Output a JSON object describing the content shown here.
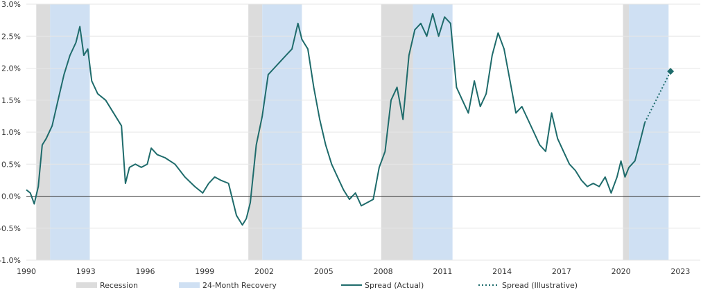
{
  "chart_data": {
    "type": "line",
    "title": "",
    "xlabel": "",
    "ylabel": "",
    "xlim": [
      1990,
      2024
    ],
    "ylim": [
      -1.0,
      3.0
    ],
    "y_ticks": [
      -1.0,
      -0.5,
      0.0,
      0.5,
      1.0,
      1.5,
      2.0,
      2.5,
      3.0
    ],
    "y_tick_labels": [
      "-1.0%",
      "-0.5%",
      "0.0%",
      "0.5%",
      "1.0%",
      "1.5%",
      "2.0%",
      "2.5%",
      "3.0%"
    ],
    "x_ticks": [
      1990,
      1993,
      1996,
      1999,
      2002,
      2005,
      2008,
      2011,
      2014,
      2017,
      2020,
      2023
    ],
    "x_tick_labels": [
      "1990",
      "1993",
      "1996",
      "1999",
      "2002",
      "2005",
      "2008",
      "2011",
      "2014",
      "2017",
      "2020",
      "2023"
    ],
    "grid": true,
    "legend_position": "bottom",
    "colors": {
      "recession": "#dcdcdc",
      "recovery": "#cfe0f3",
      "spread": "#1e6b6b",
      "zero_line": "#333333",
      "grid": "#e6e6e6"
    },
    "recessions": [
      {
        "start": 1990.5,
        "end": 1991.2
      },
      {
        "start": 2001.2,
        "end": 2001.9
      },
      {
        "start": 2007.9,
        "end": 2009.5
      },
      {
        "start": 2020.1,
        "end": 2020.4
      }
    ],
    "recoveries": [
      {
        "start": 1991.2,
        "end": 1993.2
      },
      {
        "start": 2001.9,
        "end": 2003.9
      },
      {
        "start": 2009.5,
        "end": 2011.5
      },
      {
        "start": 2020.4,
        "end": 2022.4
      }
    ],
    "series": [
      {
        "name": "Spread (Actual)",
        "style": "solid",
        "x": [
          1990.0,
          1990.2,
          1990.4,
          1990.6,
          1990.8,
          1991.0,
          1991.3,
          1991.6,
          1991.9,
          1992.2,
          1992.5,
          1992.7,
          1992.9,
          1993.1,
          1993.3,
          1993.6,
          1994.0,
          1994.4,
          1994.8,
          1995.0,
          1995.2,
          1995.5,
          1995.8,
          1996.1,
          1996.3,
          1996.6,
          1997.0,
          1997.5,
          1998.0,
          1998.5,
          1998.9,
          1999.2,
          1999.5,
          1999.8,
          2000.2,
          2000.6,
          2000.9,
          2001.1,
          2001.3,
          2001.6,
          2001.9,
          2002.2,
          2002.5,
          2002.8,
          2003.1,
          2003.4,
          2003.7,
          2003.9,
          2004.2,
          2004.5,
          2004.8,
          2005.1,
          2005.4,
          2005.7,
          2006.0,
          2006.3,
          2006.6,
          2006.9,
          2007.2,
          2007.5,
          2007.8,
          2008.1,
          2008.4,
          2008.7,
          2009.0,
          2009.3,
          2009.6,
          2009.9,
          2010.2,
          2010.5,
          2010.8,
          2011.1,
          2011.4,
          2011.7,
          2012.0,
          2012.3,
          2012.6,
          2012.9,
          2013.2,
          2013.5,
          2013.8,
          2014.1,
          2014.4,
          2014.7,
          2015.0,
          2015.3,
          2015.6,
          2015.9,
          2016.2,
          2016.5,
          2016.8,
          2017.1,
          2017.4,
          2017.7,
          2018.0,
          2018.3,
          2018.6,
          2018.9,
          2019.2,
          2019.5,
          2019.8,
          2020.0,
          2020.2,
          2020.4,
          2020.7,
          2021.0,
          2021.2
        ],
        "y": [
          0.1,
          0.05,
          -0.12,
          0.15,
          0.8,
          0.9,
          1.1,
          1.5,
          1.9,
          2.2,
          2.4,
          2.65,
          2.2,
          2.3,
          1.8,
          1.6,
          1.5,
          1.3,
          1.1,
          0.2,
          0.45,
          0.5,
          0.45,
          0.5,
          0.75,
          0.65,
          0.6,
          0.5,
          0.3,
          0.15,
          0.05,
          0.2,
          0.3,
          0.25,
          0.2,
          -0.3,
          -0.45,
          -0.35,
          -0.1,
          0.8,
          1.25,
          1.9,
          2.0,
          2.1,
          2.2,
          2.3,
          2.7,
          2.45,
          2.3,
          1.7,
          1.2,
          0.8,
          0.5,
          0.3,
          0.1,
          -0.05,
          0.05,
          -0.15,
          -0.1,
          -0.05,
          0.45,
          0.7,
          1.5,
          1.7,
          1.2,
          2.2,
          2.6,
          2.7,
          2.5,
          2.85,
          2.5,
          2.8,
          2.7,
          1.7,
          1.5,
          1.3,
          1.8,
          1.4,
          1.6,
          2.2,
          2.55,
          2.3,
          1.8,
          1.3,
          1.4,
          1.2,
          1.0,
          0.8,
          0.7,
          1.3,
          0.9,
          0.7,
          0.5,
          0.4,
          0.25,
          0.15,
          0.2,
          0.15,
          0.3,
          0.05,
          0.3,
          0.55,
          0.3,
          0.45,
          0.55,
          0.9,
          1.15
        ]
      },
      {
        "name": "Spread (Illustrative)",
        "style": "dotted",
        "x": [
          2021.2,
          2022.5
        ],
        "y": [
          1.15,
          1.95
        ]
      }
    ],
    "legend": [
      {
        "label": "Recession",
        "kind": "band"
      },
      {
        "label": "24-Month Recovery",
        "kind": "band"
      },
      {
        "label": "Spread (Actual)",
        "kind": "line"
      },
      {
        "label": "Spread (Illustrative)",
        "kind": "dotted"
      }
    ]
  }
}
